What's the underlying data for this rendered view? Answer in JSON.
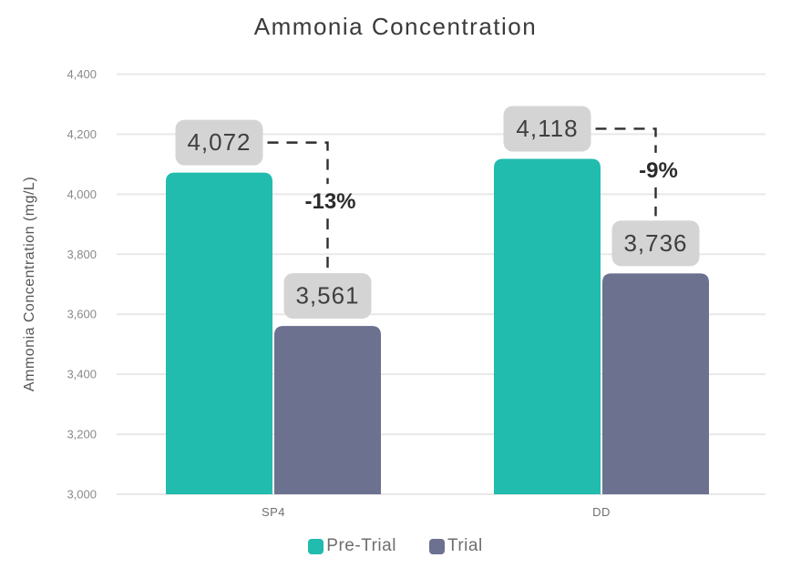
{
  "chart_data": {
    "type": "bar",
    "title": "Ammonia Concentration",
    "xlabel": "",
    "ylabel": "Ammonia Concentration (mg/L)",
    "categories": [
      "SP4",
      "DD"
    ],
    "series": [
      {
        "name": "Pre-Trial",
        "color": "#21BCAD",
        "values": [
          4072,
          4118
        ],
        "labels": [
          "4,072",
          "4,118"
        ]
      },
      {
        "name": "Trial",
        "color": "#6C7190",
        "values": [
          3561,
          3736
        ],
        "labels": [
          "3,561",
          "3,736"
        ]
      }
    ],
    "change_labels": [
      "-13%",
      "-9%"
    ],
    "ylim": [
      3000,
      4400
    ],
    "ytick_step": 200,
    "yticks": [
      "3,000",
      "3,200",
      "3,400",
      "3,600",
      "3,800",
      "4,000",
      "4,200",
      "4,400"
    ],
    "grid": true,
    "legend_position": "bottom"
  },
  "colors": {
    "pre_trial_bar": "#21BCAD",
    "trial_bar": "#6C7190",
    "value_label_box": "#D4D4D4",
    "value_label_text": "#3F3F3F",
    "connector_dash": "#2E2E2E",
    "percent_text": "#2B2B2B",
    "gridline": "#E8E8E8",
    "y_tick_text": "#8A8A8A",
    "x_tick_text": "#6F6F6F",
    "axis_title_text": "#565656",
    "title_text": "#3A3A3A",
    "legend_text": "#6E6E6E",
    "background": "#FFFFFF"
  }
}
